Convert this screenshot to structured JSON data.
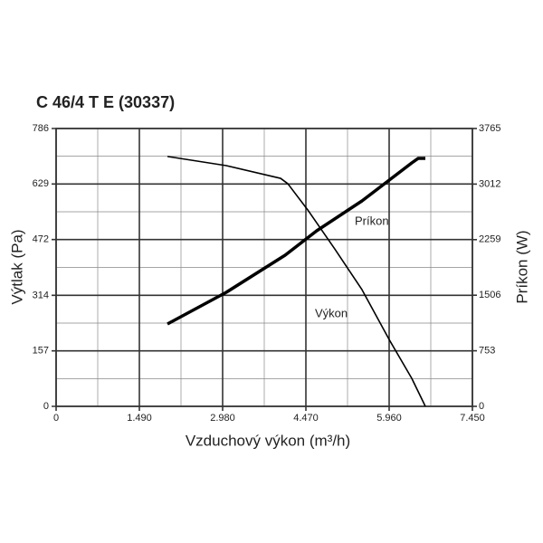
{
  "chart_data": {
    "type": "line",
    "title": "C 46/4 T E (30337)",
    "xlabel": "Vzduchový výkon (m³/h)",
    "ylabel": "Výtlak (Pa)",
    "y2label": "Príkon (W)",
    "xlim": [
      0,
      7450
    ],
    "xticks": [
      0,
      {
        "value": 1490,
        "label": "1.490"
      },
      {
        "value": 2980,
        "label": "2.980"
      },
      {
        "value": 4470,
        "label": "4.470"
      },
      {
        "value": 5960,
        "label": "5.960"
      },
      {
        "value": 7450,
        "label": "7.450"
      }
    ],
    "ylim": [
      0,
      786
    ],
    "yticks": [
      0,
      157,
      314,
      472,
      629,
      786
    ],
    "y2lim": [
      0,
      3765
    ],
    "y2ticks": [
      0,
      753,
      1506,
      2259,
      3012,
      3765
    ],
    "grid": true,
    "series": [
      {
        "name": "Výkon",
        "color": "#000000",
        "x": [
          1992,
          3045,
          4017,
          4146,
          4502,
          4988,
          5474,
          5960,
          6365,
          6608
        ],
        "values": [
          707,
          681,
          645,
          630,
          556,
          445,
          330,
          189,
          79,
          0
        ]
      },
      {
        "name": "Príkon",
        "color": "#000000",
        "axis": "y2",
        "x": [
          1992,
          3045,
          4098,
          4664,
          5474,
          6365,
          6478,
          6608
        ],
        "values": [
          1116,
          1545,
          2048,
          2379,
          2784,
          3299,
          3360,
          3360
        ]
      }
    ]
  }
}
